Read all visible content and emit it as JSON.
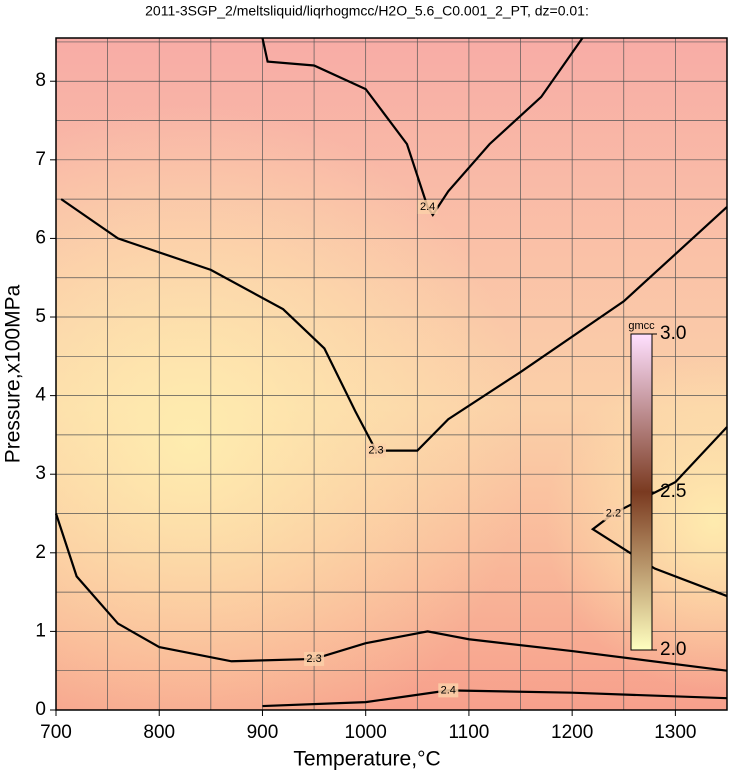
{
  "chart_data": {
    "type": "contour",
    "title": "2011-3SGP_2/meltsliquid/liqrhogmcc/H2O_5.6_C0.001_2_PT, dz=0.01:",
    "x_label": "Temperature,°C",
    "y_label": "Pressure,x100MPa",
    "xlim": [
      700,
      1350
    ],
    "ylim": [
      0,
      8.55
    ],
    "xticks": [
      700,
      800,
      900,
      1000,
      1100,
      1200,
      1300
    ],
    "yticks": [
      0,
      1,
      2,
      3,
      4,
      5,
      6,
      7,
      8
    ],
    "x_minor_grid": [
      750,
      850,
      950,
      1050,
      1150,
      1250,
      1350
    ],
    "y_minor_grid": [
      0.5,
      1.5,
      2.5,
      3.5,
      4.5,
      5.5,
      6.5,
      7.5,
      8.5
    ],
    "grid": true,
    "contours": [
      {
        "level": 2.4,
        "points": [
          [
            900,
            8.55
          ],
          [
            905,
            8.25
          ],
          [
            950,
            8.2
          ],
          [
            1000,
            7.9
          ],
          [
            1040,
            7.2
          ],
          [
            1060,
            6.4
          ],
          [
            1065,
            6.3
          ],
          [
            1080,
            6.6
          ],
          [
            1120,
            7.2
          ],
          [
            1170,
            7.8
          ],
          [
            1210,
            8.55
          ]
        ]
      },
      {
        "level": 2.3,
        "points": [
          [
            705,
            6.5
          ],
          [
            760,
            6.0
          ],
          [
            850,
            5.6
          ],
          [
            920,
            5.1
          ],
          [
            960,
            4.6
          ],
          [
            990,
            3.8
          ],
          [
            1010,
            3.3
          ],
          [
            1050,
            3.3
          ],
          [
            1080,
            3.7
          ],
          [
            1150,
            4.3
          ],
          [
            1250,
            5.2
          ],
          [
            1350,
            6.4
          ]
        ]
      },
      {
        "level": 2.3,
        "points": [
          [
            700,
            2.5
          ],
          [
            720,
            1.7
          ],
          [
            760,
            1.1
          ],
          [
            800,
            0.8
          ],
          [
            870,
            0.62
          ],
          [
            950,
            0.65
          ],
          [
            1000,
            0.85
          ],
          [
            1060,
            1.0
          ],
          [
            1100,
            0.9
          ],
          [
            1200,
            0.75
          ],
          [
            1350,
            0.5
          ]
        ]
      },
      {
        "level": 2.4,
        "points": [
          [
            900,
            0.05
          ],
          [
            1000,
            0.1
          ],
          [
            1080,
            0.25
          ],
          [
            1200,
            0.22
          ],
          [
            1350,
            0.15
          ]
        ]
      },
      {
        "level": 2.2,
        "points": [
          [
            1350,
            1.45
          ],
          [
            1280,
            1.8
          ],
          [
            1220,
            2.3
          ],
          [
            1240,
            2.5
          ],
          [
            1300,
            2.9
          ],
          [
            1350,
            3.6
          ]
        ]
      }
    ],
    "colorbar": {
      "label": "gmcc",
      "lim": [
        2,
        3
      ],
      "ticks": [
        {
          "value": 2,
          "label": "2.0"
        },
        {
          "value": 2.5,
          "label": "2.5"
        },
        {
          "value": 3,
          "label": "3.0"
        }
      ],
      "colors": [
        "#ffffc0",
        "#7a3a20",
        "#ffe0ff"
      ]
    }
  }
}
